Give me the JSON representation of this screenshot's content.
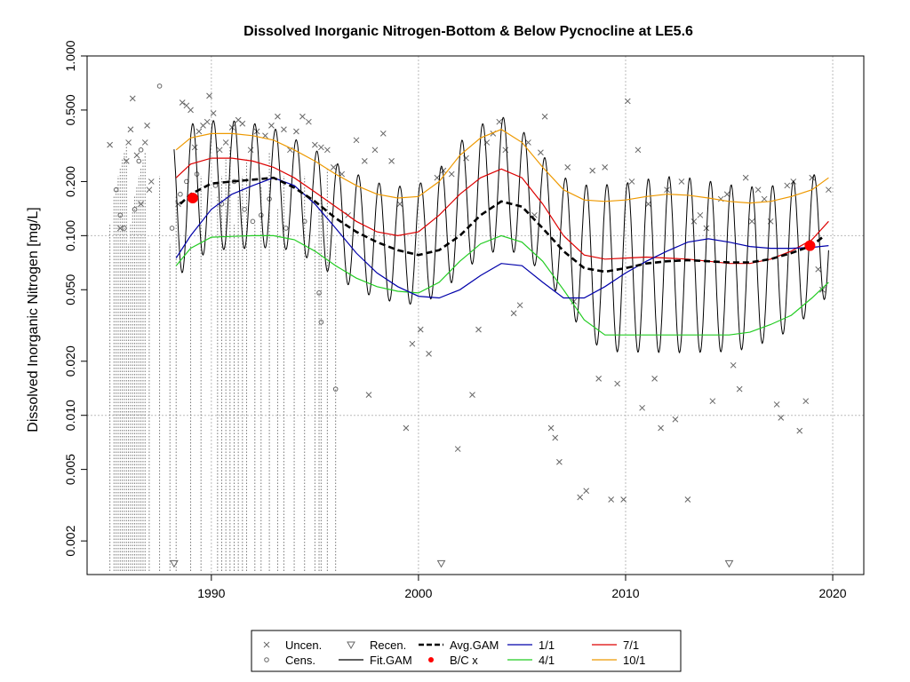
{
  "chart_data": {
    "type": "line",
    "title": "Dissolved Inorganic Nitrogen-Bottom & Below Pycnocline at LE5.6",
    "ylabel": "Dissolved Inorganic Nitrogen [mg/L]",
    "xlabel": "",
    "yscale": "log",
    "xlim": [
      1984.0,
      2021.5
    ],
    "ylim": [
      0.0013,
      1.0
    ],
    "x_ticks": [
      1990,
      2000,
      2010,
      2020
    ],
    "y_ticks": [
      {
        "value": 0.002,
        "label": "0.002"
      },
      {
        "value": 0.005,
        "label": "0.005"
      },
      {
        "value": 0.01,
        "label": "0.010"
      },
      {
        "value": 0.02,
        "label": "0.020"
      },
      {
        "value": 0.05,
        "label": "0.050"
      },
      {
        "value": 0.1,
        "label": "0.100"
      },
      {
        "value": 0.2,
        "label": "0.200"
      },
      {
        "value": 0.5,
        "label": "0.500"
      },
      {
        "value": 1.0,
        "label": "1.000"
      }
    ],
    "grid": true,
    "legend_position": "bottom",
    "colors": {
      "fit": "#000000",
      "avg": "#000000",
      "s1_1": "#0000aa",
      "s4_1": "#22cc22",
      "s7_1": "#dd0000",
      "s10_1": "#ee9900",
      "points": "#666666",
      "bc": "#ff0000",
      "grid": "#bbbbbb"
    },
    "legend": [
      {
        "label": "Uncen.",
        "symbol": "x"
      },
      {
        "label": "Cens.",
        "symbol": "circle"
      },
      {
        "label": "Recen.",
        "symbol": "triangle"
      },
      {
        "label": "Fit.GAM",
        "symbol": "line"
      },
      {
        "label": "Avg.GAM",
        "symbol": "dashed"
      },
      {
        "label": "B/C x",
        "symbol": "red-dot"
      },
      {
        "label": "1/1",
        "symbol": "line-blue"
      },
      {
        "label": "4/1",
        "symbol": "line-green"
      },
      {
        "label": "7/1",
        "symbol": "line-red"
      },
      {
        "label": "10/1",
        "symbol": "line-orange"
      }
    ],
    "series_1_1": {
      "x": [
        1988.3,
        1989,
        1990,
        1991,
        1992,
        1993,
        1994,
        1995,
        1996,
        1997,
        1998,
        1999,
        2000,
        2001,
        2002,
        2003,
        2004,
        2005,
        2006,
        2007,
        2008,
        2009,
        2010,
        2011,
        2012,
        2013,
        2014,
        2015,
        2016,
        2017,
        2018,
        2019,
        2019.8
      ],
      "y": [
        0.075,
        0.1,
        0.14,
        0.17,
        0.19,
        0.21,
        0.19,
        0.15,
        0.11,
        0.08,
        0.062,
        0.052,
        0.046,
        0.045,
        0.05,
        0.06,
        0.07,
        0.068,
        0.055,
        0.045,
        0.045,
        0.052,
        0.062,
        0.072,
        0.082,
        0.092,
        0.096,
        0.092,
        0.087,
        0.085,
        0.085,
        0.086,
        0.088
      ]
    },
    "series_4_1": {
      "x": [
        1988.3,
        1989,
        1990,
        1991,
        1992,
        1993,
        1994,
        1995,
        1996,
        1997,
        1998,
        1999,
        2000,
        2001,
        2002,
        2003,
        2004,
        2005,
        2006,
        2007,
        2008,
        2009,
        2010,
        2011,
        2012,
        2013,
        2014,
        2015,
        2016,
        2017,
        2018,
        2019,
        2019.8
      ],
      "y": [
        0.068,
        0.085,
        0.098,
        0.099,
        0.1,
        0.1,
        0.095,
        0.082,
        0.068,
        0.058,
        0.052,
        0.049,
        0.048,
        0.055,
        0.072,
        0.09,
        0.1,
        0.092,
        0.072,
        0.05,
        0.034,
        0.028,
        0.028,
        0.028,
        0.028,
        0.028,
        0.028,
        0.028,
        0.029,
        0.032,
        0.036,
        0.045,
        0.055
      ]
    },
    "series_7_1": {
      "x": [
        1988.3,
        1989,
        1990,
        1991,
        1992,
        1993,
        1994,
        1995,
        1996,
        1997,
        1998,
        1999,
        2000,
        2001,
        2002,
        2003,
        2004,
        2005,
        2006,
        2007,
        2008,
        2009,
        2010,
        2011,
        2012,
        2013,
        2014,
        2015,
        2016,
        2017,
        2018,
        2019,
        2019.8
      ],
      "y": [
        0.21,
        0.25,
        0.27,
        0.27,
        0.26,
        0.24,
        0.21,
        0.175,
        0.145,
        0.12,
        0.105,
        0.1,
        0.105,
        0.13,
        0.17,
        0.21,
        0.235,
        0.21,
        0.15,
        0.1,
        0.078,
        0.074,
        0.075,
        0.076,
        0.075,
        0.074,
        0.072,
        0.07,
        0.07,
        0.074,
        0.082,
        0.095,
        0.12
      ]
    },
    "series_10_1": {
      "x": [
        1988.3,
        1989,
        1990,
        1991,
        1992,
        1993,
        1994,
        1995,
        1996,
        1997,
        1998,
        1999,
        2000,
        2001,
        2002,
        2003,
        2004,
        2005,
        2006,
        2007,
        2008,
        2009,
        2010,
        2011,
        2012,
        2013,
        2014,
        2015,
        2016,
        2017,
        2018,
        2019,
        2019.8
      ],
      "y": [
        0.3,
        0.35,
        0.37,
        0.37,
        0.36,
        0.34,
        0.3,
        0.26,
        0.22,
        0.19,
        0.17,
        0.162,
        0.165,
        0.2,
        0.28,
        0.35,
        0.39,
        0.33,
        0.24,
        0.18,
        0.158,
        0.155,
        0.158,
        0.165,
        0.17,
        0.168,
        0.162,
        0.155,
        0.152,
        0.155,
        0.165,
        0.18,
        0.21
      ]
    },
    "series_avg": {
      "x": [
        1988.5,
        1989,
        1990,
        1991,
        1992,
        1993,
        1994,
        1995,
        1996,
        1997,
        1998,
        1999,
        2000,
        2001,
        2002,
        2003,
        2004,
        2005,
        2006,
        2007,
        2008,
        2009,
        2010,
        2011,
        2012,
        2013,
        2014,
        2015,
        2016,
        2017,
        2018,
        2019,
        2019.6
      ],
      "y": [
        0.15,
        0.17,
        0.195,
        0.2,
        0.205,
        0.21,
        0.185,
        0.155,
        0.125,
        0.105,
        0.092,
        0.083,
        0.078,
        0.083,
        0.1,
        0.13,
        0.155,
        0.145,
        0.11,
        0.082,
        0.066,
        0.063,
        0.066,
        0.07,
        0.072,
        0.073,
        0.072,
        0.071,
        0.071,
        0.074,
        0.08,
        0.088,
        0.1
      ]
    },
    "bc_points": [
      {
        "x": 1989.1,
        "y": 0.162
      },
      {
        "x": 2018.9,
        "y": 0.088
      }
    ],
    "uncensored_points": [
      [
        1985.1,
        0.32
      ],
      [
        1985.6,
        0.11
      ],
      [
        1985.9,
        0.26
      ],
      [
        1986.0,
        0.33
      ],
      [
        1986.1,
        0.39
      ],
      [
        1986.2,
        0.58
      ],
      [
        1986.4,
        0.28
      ],
      [
        1986.6,
        0.15
      ],
      [
        1986.8,
        0.33
      ],
      [
        1986.9,
        0.41
      ],
      [
        1987.0,
        0.18
      ],
      [
        1987.1,
        0.2
      ],
      [
        1988.4,
        0.15
      ],
      [
        1988.6,
        0.55
      ],
      [
        1988.8,
        0.53
      ],
      [
        1989.0,
        0.5
      ],
      [
        1989.2,
        0.31
      ],
      [
        1989.4,
        0.38
      ],
      [
        1989.6,
        0.41
      ],
      [
        1989.8,
        0.43
      ],
      [
        1989.9,
        0.6
      ],
      [
        1990.1,
        0.48
      ],
      [
        1990.4,
        0.3
      ],
      [
        1990.7,
        0.33
      ],
      [
        1991.0,
        0.4
      ],
      [
        1991.3,
        0.44
      ],
      [
        1991.5,
        0.42
      ],
      [
        1991.9,
        0.3
      ],
      [
        1992.2,
        0.38
      ],
      [
        1992.6,
        0.36
      ],
      [
        1992.9,
        0.41
      ],
      [
        1993.2,
        0.46
      ],
      [
        1993.5,
        0.39
      ],
      [
        1993.8,
        0.3
      ],
      [
        1994.1,
        0.38
      ],
      [
        1994.4,
        0.46
      ],
      [
        1994.7,
        0.43
      ],
      [
        1995.0,
        0.32
      ],
      [
        1995.3,
        0.31
      ],
      [
        1995.6,
        0.3
      ],
      [
        1995.9,
        0.24
      ],
      [
        1996.3,
        0.22
      ],
      [
        1996.6,
        0.13
      ],
      [
        1997.0,
        0.34
      ],
      [
        1997.4,
        0.26
      ],
      [
        1997.6,
        0.013
      ],
      [
        1997.9,
        0.3
      ],
      [
        1998.3,
        0.37
      ],
      [
        1998.7,
        0.26
      ],
      [
        1999.1,
        0.15
      ],
      [
        1999.4,
        0.0085
      ],
      [
        1999.7,
        0.025
      ],
      [
        2000.1,
        0.03
      ],
      [
        2000.5,
        0.022
      ],
      [
        2000.9,
        0.21
      ],
      [
        2001.2,
        0.23
      ],
      [
        2001.6,
        0.22
      ],
      [
        2001.9,
        0.0065
      ],
      [
        2002.3,
        0.27
      ],
      [
        2002.6,
        0.013
      ],
      [
        2002.9,
        0.03
      ],
      [
        2003.3,
        0.33
      ],
      [
        2003.6,
        0.37
      ],
      [
        2003.9,
        0.43
      ],
      [
        2004.2,
        0.3
      ],
      [
        2004.6,
        0.037
      ],
      [
        2004.9,
        0.041
      ],
      [
        2005.3,
        0.33
      ],
      [
        2005.6,
        0.13
      ],
      [
        2005.9,
        0.29
      ],
      [
        2006.1,
        0.46
      ],
      [
        2006.4,
        0.0085
      ],
      [
        2006.6,
        0.0075
      ],
      [
        2006.8,
        0.0055
      ],
      [
        2007.2,
        0.24
      ],
      [
        2007.5,
        0.043
      ],
      [
        2007.8,
        0.0035
      ],
      [
        2008.1,
        0.0038
      ],
      [
        2008.4,
        0.23
      ],
      [
        2008.7,
        0.016
      ],
      [
        2009.0,
        0.24
      ],
      [
        2009.3,
        0.0034
      ],
      [
        2009.6,
        0.015
      ],
      [
        2009.9,
        0.0034
      ],
      [
        2010.1,
        0.56
      ],
      [
        2010.3,
        0.2
      ],
      [
        2010.6,
        0.3
      ],
      [
        2010.8,
        0.011
      ],
      [
        2011.1,
        0.15
      ],
      [
        2011.4,
        0.016
      ],
      [
        2011.7,
        0.0085
      ],
      [
        2012.0,
        0.18
      ],
      [
        2012.4,
        0.0095
      ],
      [
        2012.7,
        0.2
      ],
      [
        2013.0,
        0.0034
      ],
      [
        2013.3,
        0.12
      ],
      [
        2013.6,
        0.13
      ],
      [
        2013.9,
        0.11
      ],
      [
        2014.2,
        0.012
      ],
      [
        2014.6,
        0.16
      ],
      [
        2014.9,
        0.17
      ],
      [
        2015.2,
        0.019
      ],
      [
        2015.5,
        0.014
      ],
      [
        2015.8,
        0.21
      ],
      [
        2016.1,
        0.12
      ],
      [
        2016.4,
        0.18
      ],
      [
        2016.7,
        0.16
      ],
      [
        2017.0,
        0.12
      ],
      [
        2017.3,
        0.0115
      ],
      [
        2017.5,
        0.0097
      ],
      [
        2017.8,
        0.19
      ],
      [
        2018.1,
        0.2
      ],
      [
        2018.4,
        0.0082
      ],
      [
        2018.7,
        0.012
      ],
      [
        2019.0,
        0.21
      ],
      [
        2019.3,
        0.065
      ],
      [
        2019.5,
        0.05
      ],
      [
        2019.8,
        0.18
      ]
    ],
    "censored_points": [
      [
        1985.4,
        0.18
      ],
      [
        1985.6,
        0.13
      ],
      [
        1985.8,
        0.11
      ],
      [
        1986.3,
        0.14
      ],
      [
        1986.5,
        0.26
      ],
      [
        1986.6,
        0.3
      ],
      [
        1987.5,
        0.68
      ],
      [
        1988.1,
        0.11
      ],
      [
        1988.5,
        0.17
      ],
      [
        1988.8,
        0.2
      ],
      [
        1989.3,
        0.22
      ],
      [
        1990.2,
        0.19
      ],
      [
        1990.5,
        0.15
      ],
      [
        1991.1,
        0.2
      ],
      [
        1991.6,
        0.14
      ],
      [
        1992.0,
        0.12
      ],
      [
        1992.4,
        0.13
      ],
      [
        1992.8,
        0.16
      ],
      [
        1993.6,
        0.11
      ],
      [
        1994.5,
        0.12
      ],
      [
        1995.2,
        0.048
      ],
      [
        1995.3,
        0.033
      ],
      [
        1996.0,
        0.014
      ]
    ],
    "recensored_points": [
      [
        1988.2,
        0.0015
      ],
      [
        2001.1,
        0.0015
      ],
      [
        2015.0,
        0.0015
      ]
    ],
    "censored_vertical_lines": [
      1985.1,
      1985.3,
      1985.4,
      1985.5,
      1985.6,
      1985.7,
      1985.8,
      1985.9,
      1986.0,
      1986.1,
      1986.2,
      1986.3,
      1986.4,
      1986.5,
      1986.6,
      1986.7,
      1986.8,
      1987.0,
      1987.5,
      1988.0,
      1988.3,
      1989.0,
      1989.5,
      1990.3,
      1990.5,
      1990.7,
      1990.9,
      1991.1,
      1991.3,
      1991.5,
      1991.7,
      1992.1,
      1992.4,
      1992.8,
      1993.2,
      1993.5,
      1994.0,
      1994.5,
      1995.0,
      1995.2,
      1995.3,
      1995.6,
      1996.0
    ],
    "fit_gam_params": {
      "x_start": 1988.2,
      "x_end": 2019.8,
      "note_free": true
    }
  }
}
